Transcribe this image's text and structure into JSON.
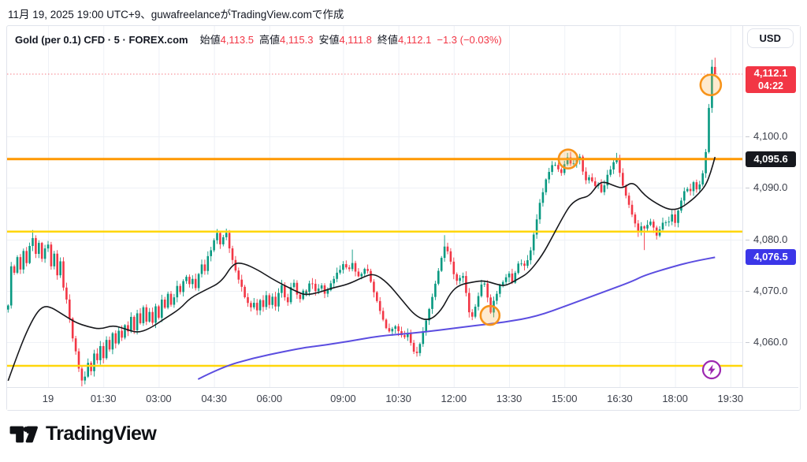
{
  "attribution": "11月 19, 2025 19:00 UTC+9、guwafreelanceがTradingView.comで作成",
  "header": {
    "symbol_title": "Gold (per 0.1) CFD · 5 · FOREX.com",
    "ohlc": [
      {
        "label": "始値",
        "value": "4,113.5"
      },
      {
        "label": "高値",
        "value": "4,115.3"
      },
      {
        "label": "安値",
        "value": "4,111.8"
      },
      {
        "label": "終値",
        "value": "4,112.1"
      }
    ],
    "change": "−1.3 (−0.03%)",
    "currency": "USD"
  },
  "price_axis": {
    "labels": [
      {
        "text": "4,100.0",
        "price": 4100
      },
      {
        "text": "4,090.0",
        "price": 4090
      },
      {
        "text": "4,080.0",
        "price": 4080
      },
      {
        "text": "4,070.0",
        "price": 4070
      },
      {
        "text": "4,060.0",
        "price": 4060
      }
    ],
    "last_price_badge": {
      "price": "4,112.1",
      "countdown": "04:22",
      "color": "#f23645"
    },
    "line_badges": [
      {
        "text": "4,095.6",
        "price": 4095.6,
        "color": "#16181e"
      },
      {
        "text": "4,076.5",
        "price": 4076.5,
        "color": "#3b36e8"
      }
    ]
  },
  "time_axis": {
    "labels": [
      {
        "text": "19",
        "m": 0
      },
      {
        "text": "01:30",
        "m": 90
      },
      {
        "text": "03:00",
        "m": 180
      },
      {
        "text": "04:30",
        "m": 270
      },
      {
        "text": "06:00",
        "m": 360
      },
      {
        "text": "09:00",
        "m": 540
      },
      {
        "text": "10:30",
        "m": 630
      },
      {
        "text": "12:00",
        "m": 720
      },
      {
        "text": "13:30",
        "m": 810
      },
      {
        "text": "15:00",
        "m": 900
      },
      {
        "text": "16:30",
        "m": 990
      },
      {
        "text": "18:00",
        "m": 1080
      },
      {
        "text": "19:30",
        "m": 1170
      }
    ]
  },
  "chart_data": {
    "type": "candlestick",
    "symbol": "Gold (per 0.1) CFD",
    "interval_minutes": 5,
    "source": "FOREX.com",
    "ylim": [
      4048,
      4118
    ],
    "grid": true,
    "session_halt": {
      "from_minute": 420,
      "to_minute": 480
    },
    "last_candle": {
      "open": 4113.5,
      "high": 4115.3,
      "low": 4111.8,
      "close": 4112.1
    },
    "close_waypoints": [
      [
        -65,
        4067
      ],
      [
        -60,
        4075
      ],
      [
        -55,
        4073.5
      ],
      [
        -50,
        4076.5
      ],
      [
        -45,
        4074
      ],
      [
        -40,
        4077.5
      ],
      [
        -35,
        4075.5
      ],
      [
        -30,
        4078.5
      ],
      [
        -25,
        4080
      ],
      [
        -20,
        4077
      ],
      [
        -15,
        4079.5
      ],
      [
        -10,
        4076.5
      ],
      [
        -5,
        4078
      ],
      [
        0,
        4078.8
      ],
      [
        5,
        4075
      ],
      [
        10,
        4077
      ],
      [
        15,
        4073
      ],
      [
        20,
        4075.5
      ],
      [
        25,
        4070.5
      ],
      [
        30,
        4068
      ],
      [
        35,
        4064.5
      ],
      [
        40,
        4061
      ],
      [
        45,
        4058
      ],
      [
        50,
        4055
      ],
      [
        55,
        4052.5
      ],
      [
        60,
        4053.5
      ],
      [
        64,
        4056.5
      ],
      [
        68,
        4053.8
      ],
      [
        72,
        4055
      ],
      [
        76,
        4058.5
      ],
      [
        80,
        4056.2
      ],
      [
        85,
        4059
      ],
      [
        90,
        4057
      ],
      [
        95,
        4060.5
      ],
      [
        100,
        4058.5
      ],
      [
        105,
        4061.5
      ],
      [
        110,
        4060
      ],
      [
        115,
        4062.5
      ],
      [
        120,
        4061
      ],
      [
        125,
        4063.5
      ],
      [
        130,
        4062
      ],
      [
        135,
        4064.8
      ],
      [
        140,
        4062.5
      ],
      [
        145,
        4065.5
      ],
      [
        150,
        4063.8
      ],
      [
        155,
        4066.5
      ],
      [
        160,
        4064
      ],
      [
        165,
        4066
      ],
      [
        170,
        4063.8
      ],
      [
        175,
        4067
      ],
      [
        180,
        4065
      ],
      [
        185,
        4068.5
      ],
      [
        190,
        4066.5
      ],
      [
        195,
        4069.5
      ],
      [
        200,
        4067.5
      ],
      [
        205,
        4069
      ],
      [
        210,
        4071
      ],
      [
        215,
        4069.5
      ],
      [
        220,
        4072
      ],
      [
        225,
        4073
      ],
      [
        230,
        4071
      ],
      [
        235,
        4072.5
      ],
      [
        240,
        4070.8
      ],
      [
        245,
        4073.5
      ],
      [
        250,
        4075
      ],
      [
        255,
        4073.8
      ],
      [
        260,
        4076.5
      ],
      [
        265,
        4078
      ],
      [
        270,
        4079.8
      ],
      [
        275,
        4081.2
      ],
      [
        280,
        4078.8
      ],
      [
        285,
        4080.3
      ],
      [
        290,
        4081
      ],
      [
        295,
        4078
      ],
      [
        300,
        4076
      ],
      [
        305,
        4074
      ],
      [
        310,
        4072
      ],
      [
        315,
        4070.5
      ],
      [
        320,
        4068.8
      ],
      [
        325,
        4067.8
      ],
      [
        330,
        4066.5
      ],
      [
        335,
        4067.8
      ],
      [
        340,
        4066.2
      ],
      [
        345,
        4068
      ],
      [
        350,
        4067
      ],
      [
        355,
        4069
      ],
      [
        360,
        4067.5
      ],
      [
        365,
        4068.8
      ],
      [
        370,
        4067.2
      ],
      [
        375,
        4069.5
      ],
      [
        380,
        4070.8
      ],
      [
        385,
        4069
      ],
      [
        390,
        4068
      ],
      [
        395,
        4070.5
      ],
      [
        400,
        4071.5
      ],
      [
        405,
        4069.5
      ],
      [
        410,
        4068.5
      ],
      [
        415,
        4070
      ],
      [
        420,
        4069.5
      ],
      [
        480,
        4070
      ],
      [
        488,
        4072
      ],
      [
        496,
        4069.5
      ],
      [
        504,
        4071
      ],
      [
        512,
        4069
      ],
      [
        520,
        4071.5
      ],
      [
        528,
        4073
      ],
      [
        536,
        4074.5
      ],
      [
        542,
        4075.5
      ],
      [
        548,
        4073.5
      ],
      [
        556,
        4075.5
      ],
      [
        562,
        4072.5
      ],
      [
        570,
        4073.5
      ],
      [
        578,
        4074.5
      ],
      [
        586,
        4071.5
      ],
      [
        594,
        4068.5
      ],
      [
        602,
        4065.5
      ],
      [
        610,
        4063
      ],
      [
        617,
        4061.8
      ],
      [
        624,
        4063.5
      ],
      [
        631,
        4062
      ],
      [
        638,
        4060.5
      ],
      [
        645,
        4061.8
      ],
      [
        652,
        4058.8
      ],
      [
        658,
        4057.3
      ],
      [
        664,
        4059.5
      ],
      [
        670,
        4062
      ],
      [
        676,
        4064.5
      ],
      [
        682,
        4067.5
      ],
      [
        688,
        4070.5
      ],
      [
        694,
        4073
      ],
      [
        701,
        4077
      ],
      [
        707,
        4079.3
      ],
      [
        713,
        4076.5
      ],
      [
        720,
        4073.2
      ],
      [
        727,
        4071.8
      ],
      [
        734,
        4073.5
      ],
      [
        740,
        4069.8
      ],
      [
        745,
        4066
      ],
      [
        750,
        4064.8
      ],
      [
        756,
        4067.5
      ],
      [
        762,
        4070
      ],
      [
        768,
        4072
      ],
      [
        774,
        4069.8
      ],
      [
        779,
        4065.4
      ],
      [
        785,
        4067.8
      ],
      [
        791,
        4069.8
      ],
      [
        797,
        4071.3
      ],
      [
        803,
        4072
      ],
      [
        809,
        4073.3
      ],
      [
        815,
        4071.8
      ],
      [
        821,
        4073.8
      ],
      [
        827,
        4076.3
      ],
      [
        833,
        4074.5
      ],
      [
        839,
        4075.8
      ],
      [
        846,
        4078
      ],
      [
        852,
        4082
      ],
      [
        858,
        4086
      ],
      [
        864,
        4089
      ],
      [
        870,
        4091.5
      ],
      [
        876,
        4093.5
      ],
      [
        882,
        4095.2
      ],
      [
        888,
        4093.8
      ],
      [
        894,
        4092.3
      ],
      [
        900,
        4094.8
      ],
      [
        906,
        4096.2
      ],
      [
        912,
        4093.8
      ],
      [
        918,
        4095.3
      ],
      [
        924,
        4096.3
      ],
      [
        930,
        4093.3
      ],
      [
        936,
        4090.8
      ],
      [
        942,
        4092.5
      ],
      [
        948,
        4089.8
      ],
      [
        954,
        4091.3
      ],
      [
        960,
        4089.3
      ],
      [
        966,
        4091
      ],
      [
        972,
        4093
      ],
      [
        978,
        4094.5
      ],
      [
        984,
        4095.8
      ],
      [
        990,
        4092.8
      ],
      [
        996,
        4090.3
      ],
      [
        1002,
        4087.8
      ],
      [
        1008,
        4085.3
      ],
      [
        1014,
        4083.3
      ],
      [
        1020,
        4081.3
      ],
      [
        1026,
        4083
      ],
      [
        1032,
        4081.8
      ],
      [
        1038,
        4084.3
      ],
      [
        1044,
        4082.3
      ],
      [
        1050,
        4080.8
      ],
      [
        1056,
        4082.3
      ],
      [
        1062,
        4084
      ],
      [
        1068,
        4082.8
      ],
      [
        1074,
        4085.3
      ],
      [
        1080,
        4083.3
      ],
      [
        1086,
        4086
      ],
      [
        1092,
        4088.3
      ],
      [
        1098,
        4090.3
      ],
      [
        1104,
        4088.8
      ],
      [
        1110,
        4090.8
      ],
      [
        1116,
        4089.3
      ],
      [
        1122,
        4091.3
      ],
      [
        1128,
        4094.5
      ],
      [
        1132,
        4100
      ],
      [
        1136,
        4107
      ],
      [
        1140,
        4113.4
      ],
      [
        1145,
        4112.1
      ]
    ],
    "wick_overrides": [
      {
        "m": -25,
        "high": 4081.8
      },
      {
        "m": 55,
        "low": 4051.4
      },
      {
        "m": 275,
        "high": 4082
      },
      {
        "m": 556,
        "high": 4078
      },
      {
        "m": 707,
        "high": 4080.8
      },
      {
        "m": 984,
        "high": 4096.8
      },
      {
        "m": 1030,
        "low": 4077.9
      },
      {
        "m": 1140,
        "high": 4114.9
      }
    ],
    "sma_line": [
      [
        -65,
        4052.5
      ],
      [
        -50,
        4057.5
      ],
      [
        -35,
        4062
      ],
      [
        -20,
        4065.5
      ],
      [
        -8,
        4067
      ],
      [
        5,
        4066.8
      ],
      [
        25,
        4065.3
      ],
      [
        45,
        4063.8
      ],
      [
        65,
        4063
      ],
      [
        85,
        4062.5
      ],
      [
        105,
        4063.3
      ],
      [
        125,
        4062.6
      ],
      [
        145,
        4061.8
      ],
      [
        165,
        4062.6
      ],
      [
        190,
        4064.6
      ],
      [
        215,
        4066.5
      ],
      [
        231,
        4068.6
      ],
      [
        257,
        4070.2
      ],
      [
        282,
        4071.7
      ],
      [
        301,
        4075.3
      ],
      [
        317,
        4075.4
      ],
      [
        342,
        4074
      ],
      [
        363,
        4072.4
      ],
      [
        385,
        4071
      ],
      [
        410,
        4069.5
      ],
      [
        480,
        4069.2
      ],
      [
        500,
        4069.6
      ],
      [
        521,
        4070.5
      ],
      [
        547,
        4071.2
      ],
      [
        572,
        4072.6
      ],
      [
        590,
        4073.4
      ],
      [
        612,
        4071.6
      ],
      [
        635,
        4068.3
      ],
      [
        658,
        4065
      ],
      [
        680,
        4064.1
      ],
      [
        700,
        4066.2
      ],
      [
        715,
        4069.7
      ],
      [
        730,
        4071.2
      ],
      [
        752,
        4071.7
      ],
      [
        769,
        4072
      ],
      [
        791,
        4071.2
      ],
      [
        804,
        4070.9
      ],
      [
        825,
        4072.3
      ],
      [
        842,
        4073.5
      ],
      [
        864,
        4076.9
      ],
      [
        880,
        4080.4
      ],
      [
        897,
        4084.2
      ],
      [
        910,
        4086.8
      ],
      [
        925,
        4088
      ],
      [
        940,
        4088.3
      ],
      [
        955,
        4090.8
      ],
      [
        965,
        4091.2
      ],
      [
        983,
        4090.3
      ],
      [
        995,
        4089.9
      ],
      [
        1012,
        4091.3
      ],
      [
        1030,
        4088.5
      ],
      [
        1056,
        4086.5
      ],
      [
        1073,
        4085.7
      ],
      [
        1089,
        4086
      ],
      [
        1107,
        4087.6
      ],
      [
        1118,
        4088.8
      ],
      [
        1130,
        4090.5
      ],
      [
        1138,
        4093
      ],
      [
        1145,
        4096
      ]
    ],
    "ema_line": [
      [
        244,
        4052.8
      ],
      [
        282,
        4055.1
      ],
      [
        333,
        4056.9
      ],
      [
        385,
        4058.2
      ],
      [
        480,
        4059
      ],
      [
        496,
        4059.2
      ],
      [
        547,
        4060.1
      ],
      [
        598,
        4061.2
      ],
      [
        650,
        4061.7
      ],
      [
        701,
        4062.4
      ],
      [
        752,
        4063.2
      ],
      [
        804,
        4063.9
      ],
      [
        855,
        4065
      ],
      [
        906,
        4067.2
      ],
      [
        960,
        4069.6
      ],
      [
        1010,
        4071.8
      ],
      [
        1030,
        4073
      ],
      [
        1080,
        4074.8
      ],
      [
        1110,
        4075.7
      ],
      [
        1145,
        4076.5
      ]
    ],
    "h_lines": [
      {
        "price": 4095.6,
        "color": "#ff9800",
        "width": 3
      },
      {
        "price": 4081.5,
        "color": "#ffd60a",
        "width": 2.5
      },
      {
        "price": 4055.4,
        "color": "#ffd60a",
        "width": 2.5
      }
    ],
    "last_price_line": {
      "price": 4112.1,
      "color": "#f23645"
    },
    "markers": [
      {
        "minute": 779,
        "price": 4065.2,
        "radius": 12
      },
      {
        "minute": 906,
        "price": 4095.6,
        "radius": 12
      },
      {
        "minute": 1138,
        "price": 4110,
        "radius": 13
      }
    ],
    "marker_color": "#f7931a",
    "colors": {
      "up": "#089981",
      "down": "#f23645",
      "sma": "#17181c",
      "ema": "#5b4de0",
      "grid": "#eef1f6"
    },
    "seed": 3,
    "noise": {
      "close": 0.3,
      "wick_base": 0.2,
      "wick_rand": 0.85
    }
  },
  "footer": {
    "logo_text": "TradingView"
  }
}
